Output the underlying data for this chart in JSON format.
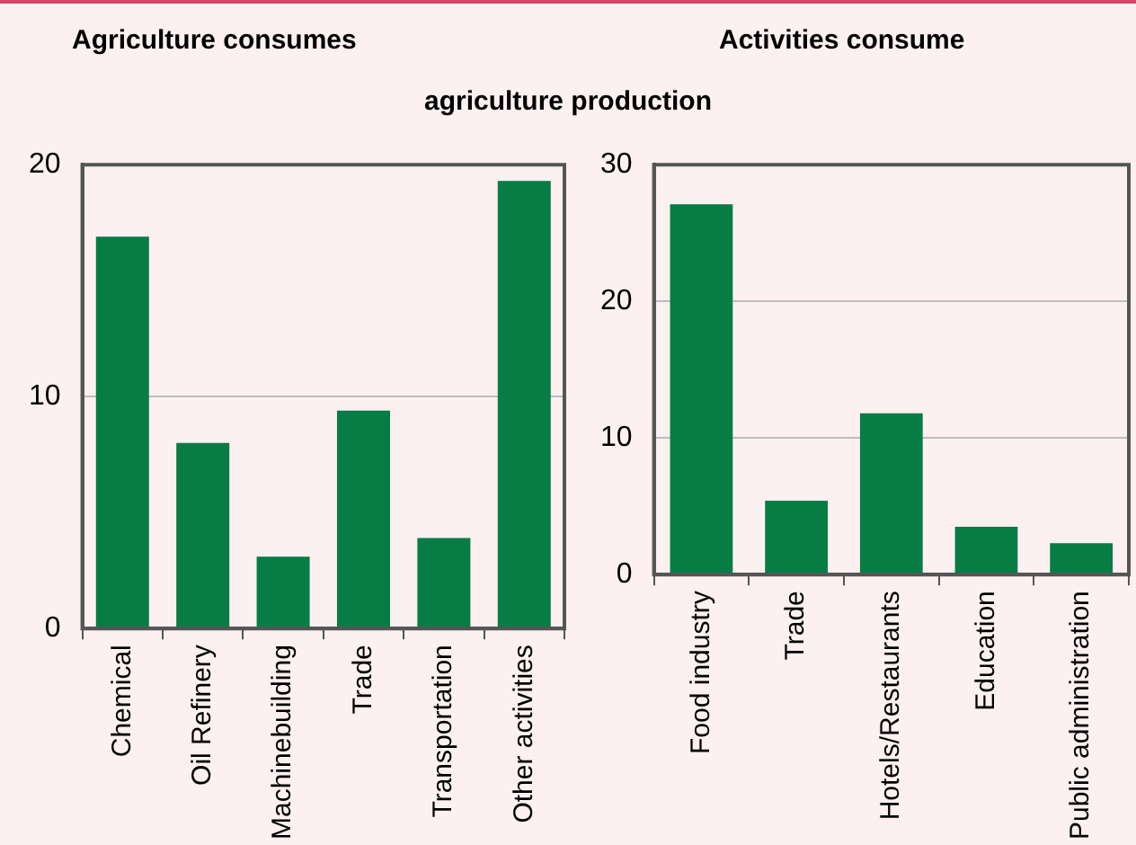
{
  "chart_data": [
    {
      "type": "bar",
      "title": "Agriculture consumes",
      "categories": [
        "Chemical",
        "Oil Refinery",
        "Machinebuilding",
        "Trade",
        "Transportation",
        "Other activities"
      ],
      "values": [
        16.9,
        8.0,
        3.1,
        9.4,
        3.9,
        19.3
      ],
      "color": "#077d45",
      "ylim": [
        0,
        20
      ],
      "yticks": [
        0,
        10,
        20
      ],
      "grid": "y",
      "legend": false
    },
    {
      "type": "bar",
      "title": "Activities consume",
      "subtitle": "agriculture production",
      "categories": [
        "Food industry",
        "Trade",
        "Hotels/Restaurants",
        "Education",
        "Public administration"
      ],
      "values": [
        27.1,
        5.4,
        11.8,
        3.5,
        2.3
      ],
      "color": "#077d45",
      "ylim": [
        0,
        30
      ],
      "yticks": [
        0,
        10,
        20,
        30
      ],
      "grid": "y",
      "legend": false
    }
  ]
}
